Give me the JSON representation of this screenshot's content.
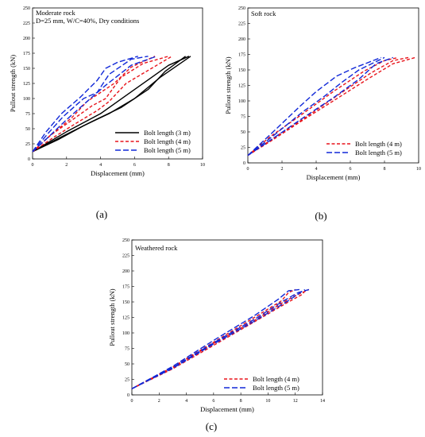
{
  "chart_data": [
    {
      "type": "line",
      "caption": "(a)",
      "annotation_lines": [
        "Moderate rock",
        "D=25 mm, W/C=40%, Dry conditions"
      ],
      "xlabel": "Displacement (mm)",
      "ylabel": "Pullout strength (kN)",
      "xlim": [
        0,
        10
      ],
      "ylim": [
        0,
        250
      ],
      "xticks": [
        0,
        2,
        4,
        6,
        8,
        10
      ],
      "yticks": [
        0,
        25,
        50,
        75,
        100,
        125,
        150,
        175,
        200,
        225,
        250
      ],
      "legend_position": "bottom-right",
      "series": [
        {
          "name": "Bolt length (3 m)",
          "color": "#000000",
          "style": "solid",
          "curves": [
            [
              [
                0,
                12
              ],
              [
                1.5,
                32
              ],
              [
                3,
                55
              ],
              [
                4.5,
                75
              ],
              [
                6,
                100
              ],
              [
                7.5,
                135
              ],
              [
                9.3,
                170
              ]
            ],
            [
              [
                0,
                12
              ],
              [
                1.8,
                38
              ],
              [
                3.5,
                62
              ],
              [
                5.2,
                85
              ],
              [
                6.8,
                115
              ],
              [
                7.8,
                145
              ],
              [
                9.0,
                170
              ]
            ],
            [
              [
                0,
                12
              ],
              [
                2,
                45
              ],
              [
                4,
                75
              ],
              [
                5.5,
                105
              ],
              [
                7,
                135
              ],
              [
                8,
                155
              ],
              [
                9.2,
                170
              ]
            ]
          ]
        },
        {
          "name": "Bolt length (4 m)",
          "color": "#e8141b",
          "style": "dashed",
          "curves": [
            [
              [
                0,
                12
              ],
              [
                1.2,
                35
              ],
              [
                2.5,
                58
              ],
              [
                3.8,
                80
              ],
              [
                4.5,
                95
              ],
              [
                5.5,
                125
              ],
              [
                7,
                150
              ],
              [
                8.2,
                170
              ]
            ],
            [
              [
                0,
                12
              ],
              [
                1,
                38
              ],
              [
                2.2,
                62
              ],
              [
                3.5,
                88
              ],
              [
                4.3,
                100
              ],
              [
                5.2,
                135
              ],
              [
                6.5,
                158
              ],
              [
                8.0,
                170
              ]
            ],
            [
              [
                0,
                12
              ],
              [
                1.1,
                40
              ],
              [
                2.3,
                68
              ],
              [
                3.2,
                95
              ],
              [
                4.8,
                125
              ],
              [
                5.8,
                152
              ],
              [
                7.2,
                170
              ]
            ]
          ]
        },
        {
          "name": "Bolt length (5 m)",
          "color": "#1028d8",
          "style": "dashed",
          "curves": [
            [
              [
                0,
                12
              ],
              [
                1,
                38
              ],
              [
                2,
                65
              ],
              [
                3.2,
                95
              ],
              [
                4.3,
                122
              ],
              [
                5.8,
                155
              ],
              [
                7.3,
                170
              ]
            ],
            [
              [
                0,
                12
              ],
              [
                0.9,
                42
              ],
              [
                1.8,
                70
              ],
              [
                3,
                100
              ],
              [
                3.8,
                110
              ],
              [
                4.5,
                140
              ],
              [
                5.8,
                165
              ],
              [
                6.8,
                170
              ]
            ],
            [
              [
                0,
                12
              ],
              [
                0.8,
                45
              ],
              [
                1.7,
                75
              ],
              [
                2.8,
                102
              ],
              [
                3.8,
                130
              ],
              [
                4.3,
                150
              ],
              [
                5.0,
                160
              ],
              [
                6.2,
                170
              ]
            ]
          ]
        }
      ]
    },
    {
      "type": "line",
      "caption": "(b)",
      "annotation_lines": [
        "Soft rock"
      ],
      "xlabel": "Displacement (mm)",
      "ylabel": "Pullout strength (kN)",
      "xlim": [
        0,
        10
      ],
      "ylim": [
        0,
        250
      ],
      "xticks": [
        0,
        2,
        4,
        6,
        8,
        10
      ],
      "yticks": [
        0,
        25,
        50,
        75,
        100,
        125,
        150,
        175,
        200,
        225,
        250
      ],
      "legend_position": "bottom-right",
      "series": [
        {
          "name": "Bolt length (4 m)",
          "color": "#e8141b",
          "style": "dashed",
          "curves": [
            [
              [
                0,
                12
              ],
              [
                1.5,
                38
              ],
              [
                3,
                65
              ],
              [
                5,
                100
              ],
              [
                7,
                135
              ],
              [
                8.5,
                160
              ],
              [
                9.8,
                170
              ]
            ],
            [
              [
                0,
                12
              ],
              [
                1.5,
                40
              ],
              [
                3.2,
                70
              ],
              [
                5.2,
                108
              ],
              [
                7.2,
                145
              ],
              [
                8.5,
                165
              ],
              [
                9.4,
                170
              ]
            ],
            [
              [
                0,
                12
              ],
              [
                1.3,
                42
              ],
              [
                3,
                75
              ],
              [
                5,
                115
              ],
              [
                6.8,
                148
              ],
              [
                8,
                165
              ],
              [
                8.8,
                170
              ]
            ]
          ]
        },
        {
          "name": "Bolt length (5 m)",
          "color": "#1028d8",
          "style": "dashed",
          "curves": [
            [
              [
                0,
                12
              ],
              [
                1.5,
                40
              ],
              [
                3.2,
                72
              ],
              [
                5,
                105
              ],
              [
                6.5,
                135
              ],
              [
                7.5,
                160
              ],
              [
                8.5,
                170
              ]
            ],
            [
              [
                0,
                12
              ],
              [
                1.5,
                44
              ],
              [
                3.2,
                82
              ],
              [
                4.5,
                108
              ],
              [
                5.5,
                130
              ],
              [
                6.5,
                150
              ],
              [
                8,
                170
              ]
            ],
            [
              [
                0,
                12
              ],
              [
                1.4,
                48
              ],
              [
                3,
                90
              ],
              [
                4,
                115
              ],
              [
                5.2,
                140
              ],
              [
                6.2,
                153
              ],
              [
                7.8,
                170
              ]
            ]
          ]
        }
      ]
    },
    {
      "type": "line",
      "caption": "(c)",
      "annotation_lines": [
        "Weathered rock"
      ],
      "xlabel": "Displacement (mm)",
      "ylabel": "Pullout strength (kN)",
      "xlim": [
        0,
        14
      ],
      "ylim": [
        0,
        250
      ],
      "xticks": [
        0,
        2,
        4,
        6,
        8,
        10,
        12,
        14
      ],
      "yticks": [
        0,
        25,
        50,
        75,
        100,
        125,
        150,
        175,
        200,
        225,
        250
      ],
      "legend_position": "bottom-right",
      "series": [
        {
          "name": "Bolt length (4 m)",
          "color": "#e8141b",
          "style": "dashed",
          "curves": [
            [
              [
                0,
                10
              ],
              [
                3,
                45
              ],
              [
                6,
                85
              ],
              [
                9,
                125
              ],
              [
                11,
                152
              ],
              [
                11.5,
                165
              ],
              [
                12.0,
                170
              ]
            ],
            [
              [
                0,
                10
              ],
              [
                3,
                44
              ],
              [
                6,
                83
              ],
              [
                9,
                120
              ],
              [
                11,
                148
              ],
              [
                12,
                160
              ],
              [
                13.0,
                170
              ]
            ],
            [
              [
                0,
                10
              ],
              [
                3,
                42
              ],
              [
                6,
                80
              ],
              [
                9,
                118
              ],
              [
                11.5,
                150
              ],
              [
                12.5,
                162
              ],
              [
                12.8,
                170
              ]
            ]
          ]
        },
        {
          "name": "Bolt length (5 m)",
          "color": "#1028d8",
          "style": "dashed",
          "curves": [
            [
              [
                0,
                10
              ],
              [
                3,
                46
              ],
              [
                6,
                88
              ],
              [
                9,
                128
              ],
              [
                10.8,
                155
              ],
              [
                11.5,
                168
              ],
              [
                12.3,
                170
              ]
            ],
            [
              [
                0,
                10
              ],
              [
                3,
                44
              ],
              [
                6,
                84
              ],
              [
                9,
                122
              ],
              [
                11,
                150
              ],
              [
                12.2,
                165
              ],
              [
                13.0,
                170
              ]
            ],
            [
              [
                0,
                10
              ],
              [
                3,
                43
              ],
              [
                6,
                82
              ],
              [
                9,
                119
              ],
              [
                11.5,
                152
              ],
              [
                12.7,
                170
              ]
            ]
          ]
        }
      ]
    }
  ]
}
